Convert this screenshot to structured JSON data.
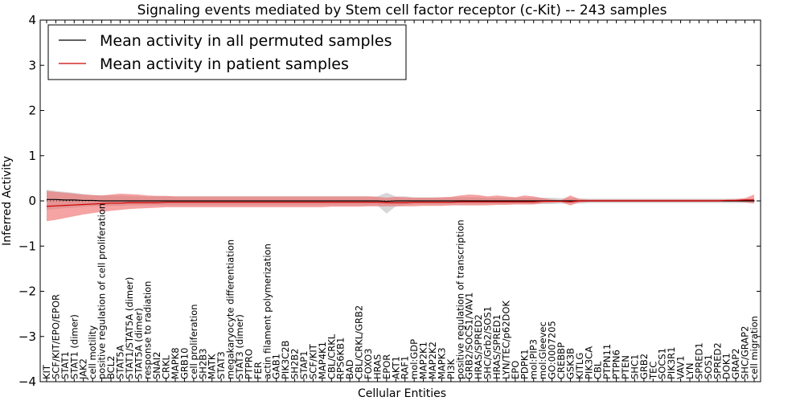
{
  "chart_data": {
    "type": "line",
    "title": "Signaling events mediated by Stem cell factor receptor (c-Kit) -- 243 samples",
    "xlabel": "Cellular Entities",
    "ylabel": "Inferred Activity",
    "ylim": [
      -4,
      4
    ],
    "yticks": [
      4,
      3,
      2,
      1,
      0,
      -1,
      -2,
      -3,
      -4
    ],
    "ytick_labels": [
      "4",
      "3",
      "2",
      "1",
      "0",
      "−1",
      "−2",
      "−3",
      "−4"
    ],
    "legend_position": "top-left",
    "categories": [
      "KIT",
      "SCF/KIT/EPO/EPOR",
      "STAT1",
      "STAT1 (dimer)",
      "JAK2",
      "cell motility",
      "positive regulation of cell proliferation",
      "BCL2",
      "STAT5A",
      "STAT1/STAT5A (dimer)",
      "STAT5A (dimer)",
      "response to radiation",
      "SNAI2",
      "CRKL",
      "MAPK8",
      "GRB10",
      "cell proliferation",
      "SH2B3",
      "MATK",
      "STAT3",
      "megakaryocyte differentiation",
      "STAT3 (dimer)",
      "PTPRO",
      "FER",
      "actin filament polymerization",
      "GAB1",
      "PIK3C2B",
      "SH2B2",
      "STAP1",
      "SCF/KIT",
      "MAP4K1",
      "CBL/CRKL",
      "RPS6KB1",
      "BAD",
      "CBL/CRKL/GRB2",
      "FOXO3",
      "HRAS",
      "EPOR",
      "AKT1",
      "RAF1",
      "mol:GDP",
      "MAP2K1",
      "MAP2K2",
      "MAPK3",
      "PI3K",
      "positive regulation of transcription",
      "GRB2/SOCS1/VAV1",
      "HRAS/SPRED2",
      "SHC/Grb2/SOS1",
      "HRAS/SPRED1",
      "LYN/TEC/p62DOK",
      "EPO",
      "PDPK1",
      "mol:PIP3",
      "mol:Gleevec",
      "GO:0007205",
      "CREBBP",
      "GSK3B",
      "KITLG",
      "PIK3CA",
      "CBL",
      "PTPN11",
      "PTPN6",
      "PTEN",
      "SHC1",
      "GRB2",
      "TEC",
      "SOCS1",
      "PIK3R1",
      "VAV1",
      "LYN",
      "SPRED1",
      "SOS1",
      "SPRED2",
      "DOK1",
      "GRAP2",
      "SHC/GRAP2",
      "cell migration"
    ],
    "series": [
      {
        "name": "Mean activity in all permuted samples",
        "color": "#000000",
        "values": [
          0.03,
          0.03,
          0.02,
          0.02,
          0.01,
          0.01,
          0.0,
          0.0,
          0.0,
          0.0,
          0.0,
          0.0,
          0.0,
          0.0,
          0.0,
          0.0,
          0.0,
          0.0,
          0.0,
          0.0,
          0.0,
          0.0,
          0.0,
          0.0,
          0.0,
          0.0,
          0.0,
          0.0,
          0.0,
          0.0,
          0.0,
          0.0,
          0.0,
          0.0,
          0.0,
          0.0,
          0.0,
          -0.01,
          0.0,
          0.0,
          0.0,
          0.0,
          0.0,
          0.0,
          0.0,
          0.0,
          0.0,
          0.0,
          0.0,
          0.0,
          0.0,
          0.0,
          0.0,
          0.0,
          0.0,
          0.0,
          0.0,
          0.0,
          0.0,
          0.0,
          0.0,
          0.0,
          0.0,
          0.0,
          0.0,
          0.0,
          0.0,
          0.0,
          0.0,
          0.0,
          0.0,
          0.0,
          0.0,
          0.0,
          0.0,
          0.0,
          0.0,
          0.0
        ],
        "band_upper": [
          0.25,
          0.22,
          0.2,
          0.18,
          0.15,
          0.13,
          0.12,
          0.12,
          0.12,
          0.11,
          0.1,
          0.1,
          0.1,
          0.1,
          0.1,
          0.1,
          0.1,
          0.1,
          0.1,
          0.1,
          0.1,
          0.1,
          0.1,
          0.1,
          0.1,
          0.1,
          0.1,
          0.1,
          0.1,
          0.1,
          0.1,
          0.1,
          0.1,
          0.1,
          0.1,
          0.1,
          0.1,
          0.18,
          0.1,
          0.1,
          0.08,
          0.08,
          0.08,
          0.08,
          0.08,
          0.08,
          0.08,
          0.08,
          0.07,
          0.07,
          0.07,
          0.07,
          0.07,
          0.07,
          0.07,
          0.07,
          0.06,
          0.06,
          0.06,
          0.05,
          0.05,
          0.05,
          0.05,
          0.05,
          0.05,
          0.05,
          0.05,
          0.05,
          0.05,
          0.05,
          0.05,
          0.05,
          0.05,
          0.05,
          0.05,
          0.05,
          0.05,
          0.05
        ],
        "band_lower": [
          -0.2,
          -0.18,
          -0.16,
          -0.15,
          -0.13,
          -0.12,
          -0.11,
          -0.11,
          -0.11,
          -0.1,
          -0.1,
          -0.1,
          -0.1,
          -0.1,
          -0.1,
          -0.1,
          -0.1,
          -0.1,
          -0.1,
          -0.1,
          -0.1,
          -0.1,
          -0.1,
          -0.1,
          -0.1,
          -0.1,
          -0.1,
          -0.1,
          -0.1,
          -0.1,
          -0.1,
          -0.1,
          -0.1,
          -0.1,
          -0.1,
          -0.1,
          -0.1,
          -0.28,
          -0.12,
          -0.1,
          -0.08,
          -0.08,
          -0.08,
          -0.08,
          -0.08,
          -0.08,
          -0.08,
          -0.08,
          -0.07,
          -0.07,
          -0.07,
          -0.07,
          -0.07,
          -0.07,
          -0.07,
          -0.07,
          -0.06,
          -0.06,
          -0.06,
          -0.05,
          -0.05,
          -0.05,
          -0.05,
          -0.05,
          -0.05,
          -0.05,
          -0.05,
          -0.05,
          -0.05,
          -0.05,
          -0.05,
          -0.05,
          -0.05,
          -0.05,
          -0.05,
          -0.05,
          -0.05,
          -0.05
        ]
      },
      {
        "name": "Mean activity in patient samples",
        "color": "#cc0000",
        "band_color": "#ee6666",
        "values": [
          -0.12,
          -0.11,
          -0.1,
          -0.09,
          -0.08,
          -0.07,
          -0.06,
          -0.05,
          -0.05,
          -0.04,
          -0.04,
          -0.04,
          -0.04,
          -0.03,
          -0.03,
          -0.03,
          -0.03,
          -0.03,
          -0.03,
          -0.03,
          -0.03,
          -0.03,
          -0.03,
          -0.03,
          -0.03,
          -0.03,
          -0.03,
          -0.03,
          -0.03,
          -0.03,
          -0.03,
          -0.03,
          -0.03,
          -0.03,
          -0.03,
          -0.03,
          -0.03,
          -0.04,
          -0.04,
          -0.04,
          -0.03,
          -0.03,
          -0.03,
          -0.03,
          -0.03,
          -0.02,
          -0.02,
          -0.02,
          -0.02,
          -0.02,
          -0.02,
          -0.02,
          -0.02,
          -0.02,
          -0.01,
          -0.01,
          -0.01,
          -0.02,
          0.0,
          0.0,
          0.0,
          0.0,
          0.0,
          0.0,
          0.0,
          0.0,
          0.0,
          0.0,
          0.0,
          0.0,
          0.0,
          0.0,
          0.0,
          0.0,
          0.01,
          0.01,
          0.02,
          0.02
        ],
        "band_upper": [
          0.22,
          0.2,
          0.18,
          0.16,
          0.14,
          0.13,
          0.12,
          0.14,
          0.16,
          0.15,
          0.14,
          0.12,
          0.11,
          0.11,
          0.1,
          0.1,
          0.1,
          0.1,
          0.1,
          0.1,
          0.1,
          0.1,
          0.1,
          0.1,
          0.1,
          0.1,
          0.1,
          0.1,
          0.1,
          0.1,
          0.1,
          0.1,
          0.1,
          0.1,
          0.1,
          0.1,
          0.09,
          0.07,
          0.09,
          0.08,
          0.07,
          0.07,
          0.07,
          0.08,
          0.09,
          0.12,
          0.14,
          0.13,
          0.1,
          0.12,
          0.1,
          0.08,
          0.12,
          0.1,
          0.06,
          0.03,
          0.02,
          0.12,
          0.04,
          0.03,
          0.03,
          0.03,
          0.03,
          0.03,
          0.03,
          0.03,
          0.03,
          0.03,
          0.03,
          0.03,
          0.03,
          0.03,
          0.03,
          0.03,
          0.03,
          0.04,
          0.06,
          0.14
        ],
        "band_lower": [
          -0.45,
          -0.42,
          -0.38,
          -0.34,
          -0.3,
          -0.27,
          -0.24,
          -0.22,
          -0.2,
          -0.18,
          -0.17,
          -0.16,
          -0.15,
          -0.14,
          -0.14,
          -0.14,
          -0.14,
          -0.14,
          -0.14,
          -0.14,
          -0.14,
          -0.14,
          -0.14,
          -0.14,
          -0.14,
          -0.14,
          -0.14,
          -0.14,
          -0.14,
          -0.14,
          -0.14,
          -0.13,
          -0.13,
          -0.13,
          -0.13,
          -0.12,
          -0.12,
          -0.12,
          -0.12,
          -0.12,
          -0.12,
          -0.11,
          -0.11,
          -0.11,
          -0.1,
          -0.1,
          -0.1,
          -0.1,
          -0.1,
          -0.09,
          -0.09,
          -0.08,
          -0.08,
          -0.08,
          -0.05,
          -0.04,
          -0.03,
          -0.1,
          -0.03,
          -0.02,
          -0.02,
          -0.02,
          -0.02,
          -0.02,
          -0.02,
          -0.02,
          -0.02,
          -0.02,
          -0.02,
          -0.02,
          -0.02,
          -0.02,
          -0.02,
          -0.02,
          -0.02,
          -0.02,
          -0.03,
          -0.06
        ]
      }
    ]
  }
}
